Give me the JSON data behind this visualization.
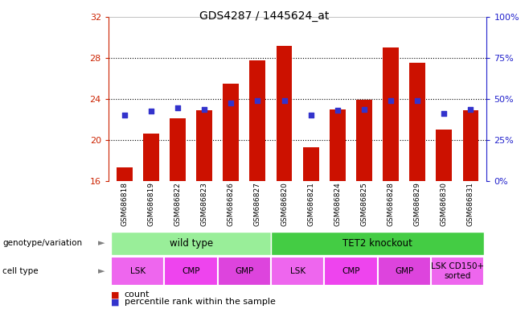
{
  "title": "GDS4287 / 1445624_at",
  "samples": [
    "GSM686818",
    "GSM686819",
    "GSM686822",
    "GSM686823",
    "GSM686826",
    "GSM686827",
    "GSM686820",
    "GSM686821",
    "GSM686824",
    "GSM686825",
    "GSM686828",
    "GSM686829",
    "GSM686830",
    "GSM686831"
  ],
  "counts": [
    17.3,
    20.6,
    22.1,
    22.9,
    25.5,
    27.8,
    29.2,
    19.3,
    23.0,
    23.9,
    29.0,
    27.5,
    21.0,
    22.9
  ],
  "percentile_ranks_left": [
    22.4,
    22.8,
    23.1,
    23.0,
    23.6,
    23.8,
    23.8,
    22.4,
    22.9,
    23.0,
    23.8,
    23.8,
    22.6,
    23.0
  ],
  "ylim_left": [
    16,
    32
  ],
  "ylim_right": [
    0,
    100
  ],
  "yticks_left": [
    16,
    20,
    24,
    28,
    32
  ],
  "yticks_right": [
    0,
    25,
    50,
    75,
    100
  ],
  "bar_color": "#cc1100",
  "dot_color": "#3333cc",
  "xtick_bg": "#c8c8c8",
  "genotype_groups": [
    {
      "label": "wild type",
      "start": 0,
      "end": 6,
      "color": "#99ee99"
    },
    {
      "label": "TET2 knockout",
      "start": 6,
      "end": 14,
      "color": "#44cc44"
    }
  ],
  "cell_type_groups": [
    {
      "label": "LSK",
      "start": 0,
      "end": 2,
      "color": "#ee66ee"
    },
    {
      "label": "CMP",
      "start": 2,
      "end": 4,
      "color": "#ee44ee"
    },
    {
      "label": "GMP",
      "start": 4,
      "end": 6,
      "color": "#dd44dd"
    },
    {
      "label": "LSK",
      "start": 6,
      "end": 8,
      "color": "#ee66ee"
    },
    {
      "label": "CMP",
      "start": 8,
      "end": 10,
      "color": "#ee44ee"
    },
    {
      "label": "GMP",
      "start": 10,
      "end": 12,
      "color": "#dd44dd"
    },
    {
      "label": "LSK CD150+\nsorted",
      "start": 12,
      "end": 14,
      "color": "#ee66ee"
    }
  ],
  "left_axis_color": "#cc2200",
  "right_axis_color": "#2222cc",
  "grid_ticks": [
    20,
    24,
    28
  ],
  "legend_items": [
    {
      "color": "#cc1100",
      "label": "count"
    },
    {
      "color": "#3333cc",
      "label": "percentile rank within the sample"
    }
  ]
}
